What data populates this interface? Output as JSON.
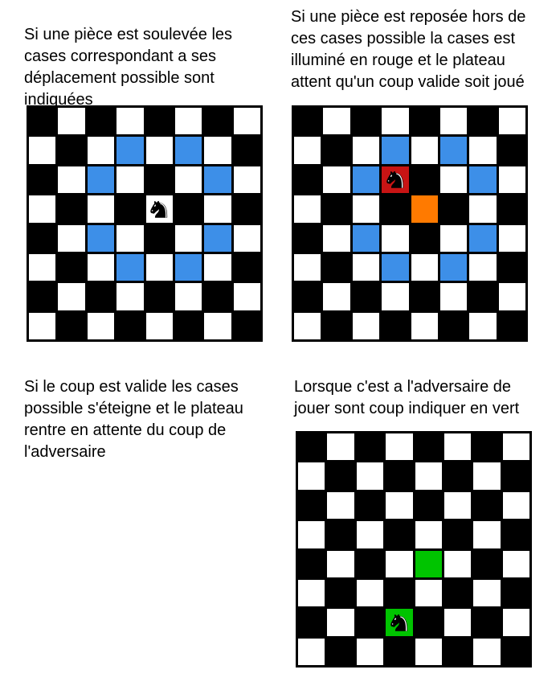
{
  "colors": {
    "dark": "#000000",
    "light": "#ffffff",
    "possible": "#3d8fe8",
    "error": "#c81414",
    "placed": "#ff7a00",
    "opponent": "#00c400"
  },
  "piece": {
    "icon": "knight-icon",
    "symbol": "♞"
  },
  "panels": [
    {
      "caption_lines": [
        "Si une pièce est soulevée les",
        "cases correspondant a ses",
        "déplacement possible sont",
        "indiquées"
      ],
      "board": {
        "highlights": [
          {
            "row": 1,
            "col": 3,
            "state": "possible"
          },
          {
            "row": 1,
            "col": 5,
            "state": "possible"
          },
          {
            "row": 2,
            "col": 2,
            "state": "possible"
          },
          {
            "row": 2,
            "col": 6,
            "state": "possible"
          },
          {
            "row": 4,
            "col": 2,
            "state": "possible"
          },
          {
            "row": 4,
            "col": 6,
            "state": "possible"
          },
          {
            "row": 5,
            "col": 3,
            "state": "possible"
          },
          {
            "row": 5,
            "col": 5,
            "state": "possible"
          }
        ],
        "piece": {
          "row": 3,
          "col": 4,
          "cell_state": "light"
        }
      }
    },
    {
      "caption_lines": [
        "Si une pièce est reposée hors de",
        "ces cases possible la cases est",
        "illuminé en rouge et le plateau",
        "attent qu'un coup valide soit joué"
      ],
      "board": {
        "highlights": [
          {
            "row": 1,
            "col": 3,
            "state": "possible"
          },
          {
            "row": 1,
            "col": 5,
            "state": "possible"
          },
          {
            "row": 2,
            "col": 2,
            "state": "possible"
          },
          {
            "row": 2,
            "col": 6,
            "state": "possible"
          },
          {
            "row": 4,
            "col": 2,
            "state": "possible"
          },
          {
            "row": 4,
            "col": 6,
            "state": "possible"
          },
          {
            "row": 5,
            "col": 3,
            "state": "possible"
          },
          {
            "row": 5,
            "col": 5,
            "state": "possible"
          },
          {
            "row": 3,
            "col": 4,
            "state": "placed"
          }
        ],
        "piece": {
          "row": 2,
          "col": 3,
          "cell_state": "error"
        }
      }
    },
    {
      "caption_lines": [
        "Si le coup est valide les cases",
        "possible s'éteigne et le plateau",
        "rentre en attente du coup de",
        "l'adversaire"
      ],
      "board": null
    },
    {
      "caption_lines": [
        "Lorsque c'est a l'adversaire de",
        "jouer sont coup indiquer en vert"
      ],
      "board": {
        "highlights": [
          {
            "row": 4,
            "col": 4,
            "state": "opponent"
          }
        ],
        "piece": {
          "row": 6,
          "col": 3,
          "cell_state": "opponent"
        }
      }
    }
  ]
}
